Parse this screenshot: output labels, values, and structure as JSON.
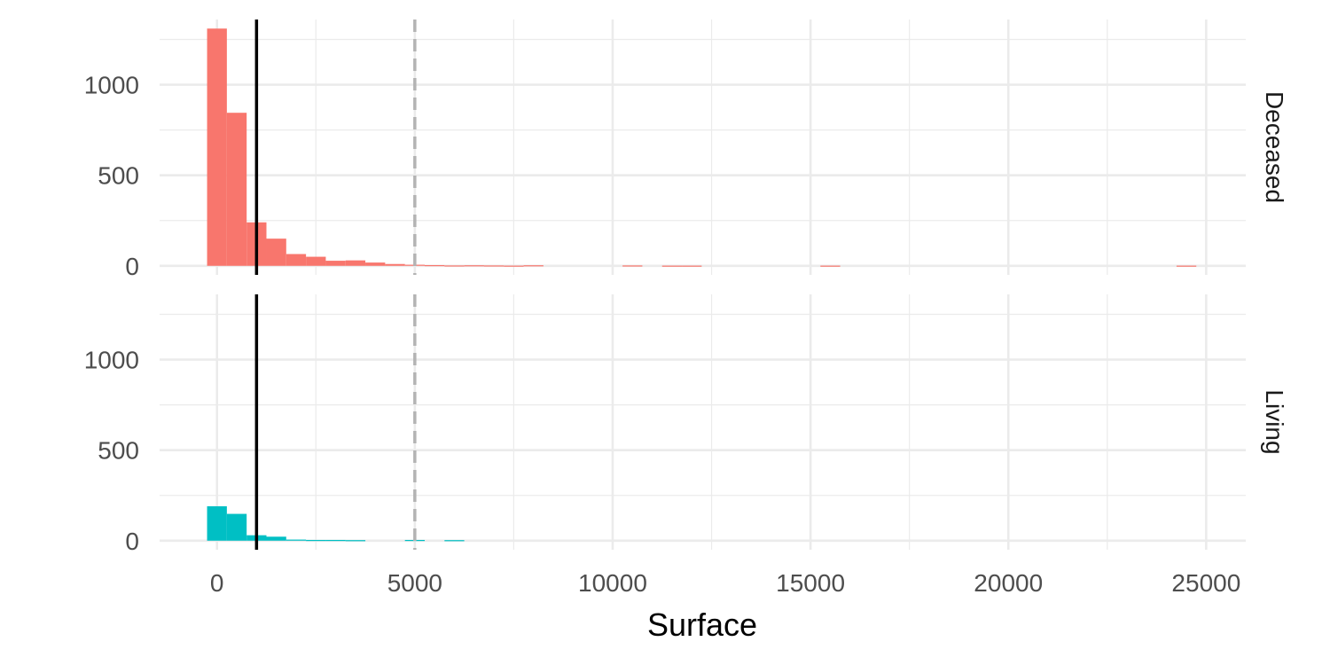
{
  "chart_data": {
    "type": "bar",
    "subtype": "histogram",
    "facet_by": "rows",
    "xlabel": "Surface",
    "ylabel": "",
    "xlim": [
      -1450,
      26000
    ],
    "ylim": [
      -50,
      1360
    ],
    "x_ticks": [
      0,
      5000,
      10000,
      15000,
      20000,
      25000
    ],
    "y_ticks": [
      0,
      500,
      1000
    ],
    "bin_width": 500,
    "grid": true,
    "legend": "none",
    "reference_lines": [
      {
        "x": 1000,
        "style": "solid",
        "color": "#000000"
      },
      {
        "x": 5000,
        "style": "dashed",
        "color": "#b3b3b3"
      }
    ],
    "panels": [
      {
        "label": "Deceased",
        "color": "#f8766d",
        "bins": [
          {
            "x": 0,
            "count": 1310
          },
          {
            "x": 500,
            "count": 845
          },
          {
            "x": 1000,
            "count": 240
          },
          {
            "x": 1500,
            "count": 150
          },
          {
            "x": 2000,
            "count": 65
          },
          {
            "x": 2500,
            "count": 50
          },
          {
            "x": 3000,
            "count": 28
          },
          {
            "x": 3500,
            "count": 30
          },
          {
            "x": 4000,
            "count": 18
          },
          {
            "x": 4500,
            "count": 10
          },
          {
            "x": 5000,
            "count": 6
          },
          {
            "x": 5500,
            "count": 4
          },
          {
            "x": 6000,
            "count": 2
          },
          {
            "x": 6500,
            "count": 3
          },
          {
            "x": 7000,
            "count": 2
          },
          {
            "x": 7500,
            "count": 1
          },
          {
            "x": 8000,
            "count": 3
          },
          {
            "x": 10500,
            "count": 2
          },
          {
            "x": 11500,
            "count": 1
          },
          {
            "x": 12000,
            "count": 1
          },
          {
            "x": 15500,
            "count": 1
          },
          {
            "x": 24500,
            "count": 1
          }
        ]
      },
      {
        "label": "Living",
        "color": "#00bfc4",
        "bins": [
          {
            "x": 0,
            "count": 190
          },
          {
            "x": 500,
            "count": 148
          },
          {
            "x": 1000,
            "count": 30
          },
          {
            "x": 1500,
            "count": 22
          },
          {
            "x": 2000,
            "count": 6
          },
          {
            "x": 2500,
            "count": 4
          },
          {
            "x": 3000,
            "count": 4
          },
          {
            "x": 3500,
            "count": 3
          },
          {
            "x": 5000,
            "count": 4
          },
          {
            "x": 6000,
            "count": 3
          }
        ]
      }
    ]
  }
}
